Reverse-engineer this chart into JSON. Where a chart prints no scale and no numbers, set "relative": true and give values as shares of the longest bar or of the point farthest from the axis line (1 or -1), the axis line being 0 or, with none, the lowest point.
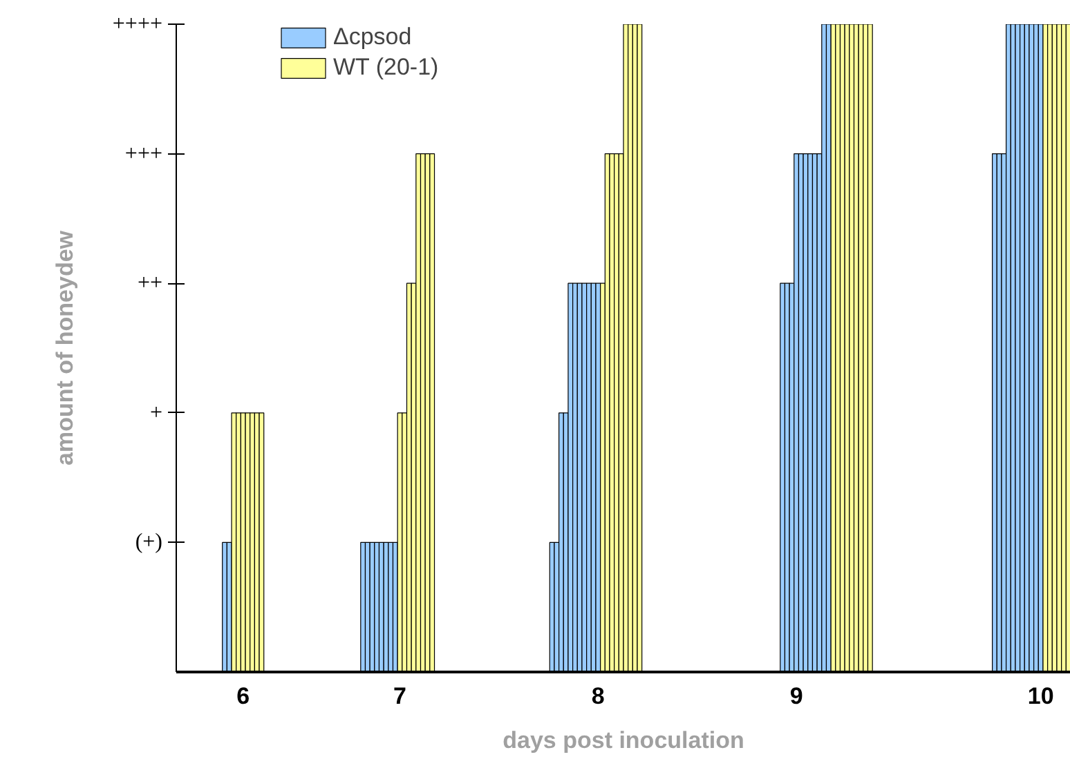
{
  "chart_data": {
    "type": "bar",
    "relative": true,
    "xlabel": "days post inoculation",
    "ylabel": "amount of honeydew",
    "categories": [
      null,
      null,
      null,
      null,
      null,
      null,
      null,
      null,
      null,
      null,
      null,
      null,
      null,
      null,
      "6",
      null,
      null,
      null,
      null,
      null,
      null,
      null,
      null,
      null,
      null,
      null,
      null,
      null,
      null,
      null,
      null,
      null,
      null,
      null,
      null,
      null,
      null,
      null,
      null,
      null,
      null,
      null,
      null,
      null,
      null,
      null,
      null,
      null,
      "7",
      null,
      null,
      null,
      null,
      null,
      null,
      null,
      null,
      null,
      null,
      null,
      null,
      null,
      null,
      null,
      null,
      null,
      null,
      null,
      null,
      null,
      null,
      null,
      null,
      null,
      null,
      null,
      null,
      null,
      null,
      null,
      null,
      null,
      null,
      null,
      null,
      null,
      null,
      null,
      null,
      null,
      null,
      "8",
      null,
      null,
      null,
      null,
      null,
      null,
      null,
      null,
      null,
      null,
      null,
      null,
      null,
      null,
      null,
      null,
      null,
      null,
      null,
      null,
      null,
      null,
      null,
      null,
      null,
      null,
      null,
      null,
      null,
      null,
      null,
      null,
      null,
      null,
      null,
      null,
      null,
      null,
      null,
      null,
      null,
      null,
      "9",
      null,
      null,
      null,
      null,
      null,
      null,
      null,
      null,
      null,
      null,
      null,
      null,
      null,
      null,
      null,
      null,
      null,
      null,
      null,
      null,
      null,
      null,
      null,
      null,
      null,
      null,
      null,
      null,
      null,
      null,
      null,
      null,
      null,
      null,
      null,
      null,
      null,
      null,
      null,
      null,
      null,
      null,
      null,
      null,
      null,
      null,
      null,
      null,
      null,
      null,
      null,
      null,
      "10",
      null,
      null,
      null,
      null,
      null,
      null
    ],
    "annotations": [
      "(+)",
      "+",
      "++",
      "+++",
      "++++"
    ],
    "grid": false,
    "legend": "top left",
    "series": [
      {
        "name": "Δcpsod",
        "color": "#99ccff",
        "values": [
          null,
          null,
          null,
          null,
          null,
          null,
          null,
          null,
          null,
          null,
          0.2,
          0.2,
          null,
          null,
          null,
          null,
          null,
          null,
          null,
          null,
          null,
          null,
          null,
          null,
          null,
          null,
          null,
          null,
          null,
          null,
          null,
          null,
          null,
          null,
          null,
          null,
          null,
          null,
          null,
          null,
          0.2,
          0.2,
          0.2,
          0.2,
          0.2,
          0.2,
          0.2,
          0.2,
          null,
          null,
          null,
          null,
          null,
          null,
          null,
          null,
          null,
          null,
          null,
          null,
          null,
          null,
          null,
          null,
          null,
          null,
          null,
          null,
          null,
          null,
          null,
          null,
          null,
          null,
          null,
          null,
          null,
          null,
          null,
          null,
          null,
          0.2,
          0.2,
          0.4,
          0.4,
          0.6,
          0.6,
          0.6,
          0.6,
          0.6,
          0.6,
          0.6,
          null,
          null,
          null,
          null,
          null,
          null,
          null,
          null,
          null,
          null,
          null,
          null,
          null,
          null,
          null,
          null,
          null,
          null,
          null,
          null,
          null,
          null,
          null,
          null,
          null,
          null,
          null,
          null,
          null,
          null,
          null,
          null,
          null,
          null,
          null,
          null,
          null,
          null,
          null,
          0.6,
          0.6,
          0.6,
          0.8,
          0.8,
          0.8,
          0.8,
          0.8,
          0.8,
          1,
          1,
          null,
          null,
          null,
          null,
          null,
          null,
          null,
          null,
          null,
          null,
          null,
          null,
          null,
          null,
          null,
          null,
          null,
          null,
          null,
          null,
          null,
          null,
          null,
          null,
          null,
          null,
          null,
          null,
          null,
          null,
          null,
          null,
          null,
          null,
          null,
          0.8,
          0.8,
          0.8,
          1,
          1,
          1,
          1,
          1,
          1,
          1,
          1,
          null,
          null,
          null,
          null,
          null,
          null
        ]
      },
      {
        "name": "WT (20-1)",
        "color": "#ffff99",
        "values": [
          null,
          null,
          null,
          null,
          null,
          null,
          null,
          null,
          null,
          null,
          null,
          null,
          0.4,
          0.4,
          0.4,
          0.4,
          0.4,
          0.4,
          0.4,
          null,
          null,
          null,
          null,
          null,
          null,
          null,
          null,
          null,
          null,
          null,
          null,
          null,
          null,
          null,
          null,
          null,
          null,
          null,
          null,
          null,
          null,
          null,
          null,
          null,
          null,
          null,
          null,
          null,
          0.4,
          0.4,
          0.6,
          0.6,
          0.8,
          0.8,
          0.8,
          0.8,
          null,
          null,
          null,
          null,
          null,
          null,
          null,
          null,
          null,
          null,
          null,
          null,
          null,
          null,
          null,
          null,
          null,
          null,
          null,
          null,
          null,
          null,
          null,
          null,
          null,
          null,
          null,
          null,
          null,
          null,
          null,
          null,
          null,
          null,
          null,
          null,
          0.6,
          0.8,
          0.8,
          0.8,
          0.8,
          1,
          1,
          1,
          1,
          null,
          null,
          null,
          null,
          null,
          null,
          null,
          null,
          null,
          null,
          null,
          null,
          null,
          null,
          null,
          null,
          null,
          null,
          null,
          null,
          null,
          null,
          null,
          null,
          null,
          null,
          null,
          null,
          null,
          null,
          null,
          null,
          null,
          null,
          null,
          null,
          null,
          null,
          null,
          null,
          null,
          1,
          1,
          1,
          1,
          1,
          1,
          1,
          1,
          1,
          null,
          null,
          null,
          null,
          null,
          null,
          null,
          null,
          null,
          null,
          null,
          null,
          null,
          null,
          null,
          null,
          null,
          null,
          null,
          null,
          null,
          null,
          null,
          null,
          null,
          null,
          null,
          null,
          null,
          null,
          null,
          null,
          null,
          null,
          null,
          null,
          null,
          1,
          1,
          1,
          1,
          1,
          1
        ]
      }
    ]
  }
}
